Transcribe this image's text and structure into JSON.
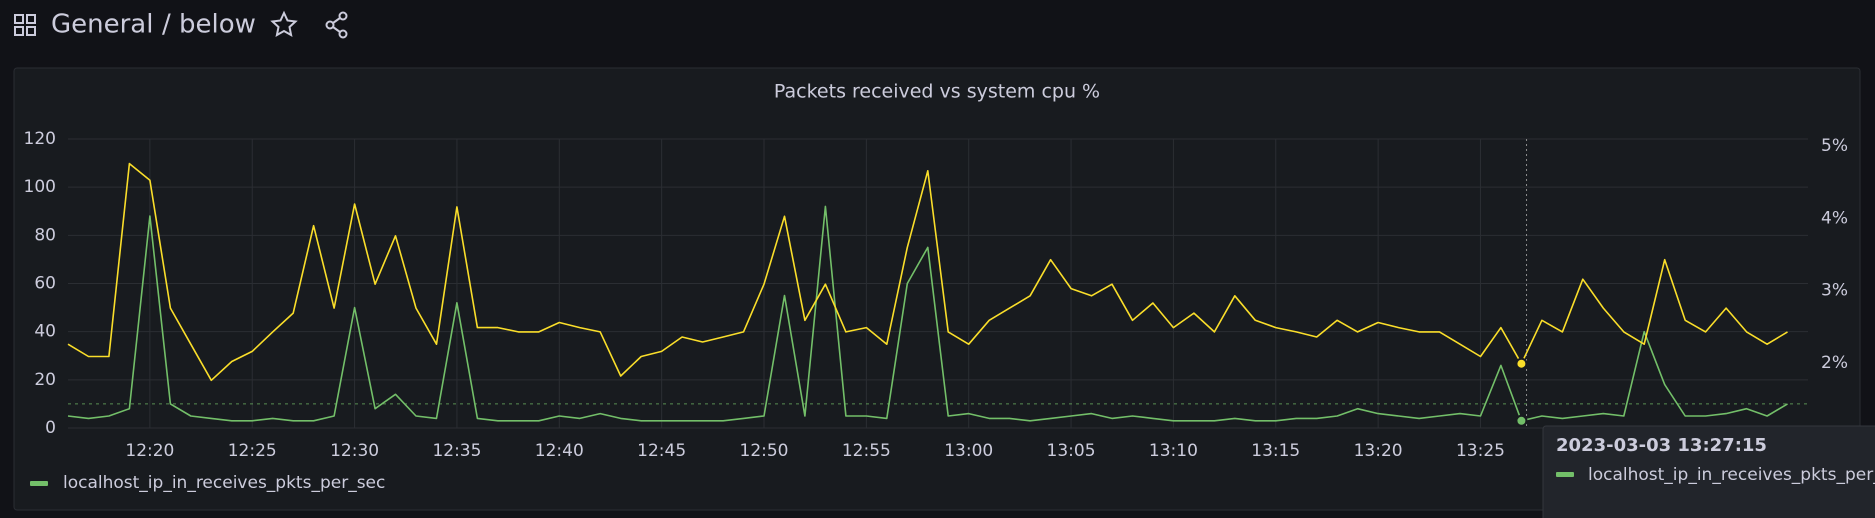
{
  "header": {
    "title": "General",
    "subtitle": "/ below"
  },
  "chart_data": {
    "type": "line",
    "title": "Packets received vs system cpu %",
    "x": [
      "12:16",
      "12:17",
      "12:18",
      "12:19",
      "12:20",
      "12:21",
      "12:22",
      "12:23",
      "12:24",
      "12:25",
      "12:26",
      "12:27",
      "12:28",
      "12:29",
      "12:30",
      "12:31",
      "12:32",
      "12:33",
      "12:34",
      "12:35",
      "12:36",
      "12:37",
      "12:38",
      "12:39",
      "12:40",
      "12:41",
      "12:42",
      "12:43",
      "12:44",
      "12:45",
      "12:46",
      "12:47",
      "12:48",
      "12:49",
      "12:50",
      "12:51",
      "12:52",
      "12:53",
      "12:54",
      "12:55",
      "12:56",
      "12:57",
      "12:58",
      "12:59",
      "13:00",
      "13:01",
      "13:02",
      "13:03",
      "13:04",
      "13:05",
      "13:06",
      "13:07",
      "13:08",
      "13:09",
      "13:10",
      "13:11",
      "13:12",
      "13:13",
      "13:14",
      "13:15",
      "13:16",
      "13:17",
      "13:18",
      "13:19",
      "13:20",
      "13:21",
      "13:22",
      "13:23",
      "13:24",
      "13:25",
      "13:26",
      "13:27",
      "13:28",
      "13:29",
      "13:30",
      "13:31",
      "13:32",
      "13:33",
      "13:34",
      "13:35",
      "13:36",
      "13:37",
      "13:38",
      "13:39",
      "13:40"
    ],
    "xlim": [
      "12:16",
      "13:41"
    ],
    "xticks": [
      "12:20",
      "12:25",
      "12:30",
      "12:35",
      "12:40",
      "12:45",
      "12:50",
      "12:55",
      "13:00",
      "13:05",
      "13:10",
      "13:15",
      "13:20",
      "13:25"
    ],
    "series": [
      {
        "name": "localhost_ip_in_receives_pkts_per_sec",
        "color": "#73bf69",
        "values": [
          5,
          4,
          5,
          8,
          88,
          10,
          5,
          4,
          3,
          3,
          4,
          3,
          3,
          5,
          50,
          8,
          14,
          5,
          4,
          52,
          4,
          3,
          3,
          3,
          5,
          4,
          6,
          4,
          3,
          3,
          3,
          3,
          3,
          4,
          5,
          55,
          5,
          92,
          5,
          5,
          4,
          60,
          75,
          5,
          6,
          4,
          4,
          3,
          4,
          5,
          6,
          4,
          5,
          4,
          3,
          3,
          3,
          4,
          3,
          3,
          4,
          4,
          5,
          8,
          6,
          5,
          4,
          5,
          6,
          5,
          26,
          3,
          5,
          4,
          5,
          6,
          5,
          40,
          18,
          5,
          5,
          6,
          8,
          5,
          10
        ]
      },
      {
        "color": "#fade2a",
        "axis": "y2",
        "values": [
          2.26,
          2.09,
          2.09,
          4.76,
          4.53,
          2.76,
          2.26,
          1.76,
          2.02,
          2.16,
          2.43,
          2.69,
          3.9,
          2.76,
          4.2,
          3.09,
          3.76,
          2.76,
          2.26,
          4.16,
          2.49,
          2.49,
          2.43,
          2.43,
          2.56,
          2.49,
          2.43,
          1.82,
          2.09,
          2.16,
          2.36,
          2.29,
          2.36,
          2.43,
          3.09,
          4.03,
          2.59,
          3.09,
          2.43,
          2.49,
          2.26,
          3.6,
          4.66,
          2.43,
          2.26,
          2.59,
          2.76,
          2.93,
          3.43,
          3.03,
          2.93,
          3.09,
          2.59,
          2.83,
          2.49,
          2.69,
          2.43,
          2.93,
          2.59,
          2.49,
          2.43,
          2.36,
          2.59,
          2.43,
          2.56,
          2.49,
          2.43,
          2.43,
          2.26,
          2.09,
          2.49,
          1.99,
          2.59,
          2.43,
          3.16,
          2.76,
          2.43,
          2.26,
          3.43,
          2.59,
          2.43,
          2.76,
          2.43,
          2.26,
          2.43
        ]
      }
    ],
    "ylim": [
      0,
      120
    ],
    "yticks": [
      0,
      20,
      40,
      60,
      80,
      100,
      120
    ],
    "y2lim": [
      1.1,
      5.1
    ],
    "y2ticks": [
      {
        "value": 2,
        "label": "2%"
      },
      {
        "value": 3,
        "label": "3%"
      },
      {
        "value": 4,
        "label": "4%"
      },
      {
        "value": 5,
        "label": "5%"
      }
    ],
    "grid": true,
    "threshold": 10,
    "legend": "bottom-left"
  },
  "tooltip": {
    "time": "2023-03-03 13:27:15",
    "series": "localhost_ip_in_receives_pkts_per_sec"
  }
}
